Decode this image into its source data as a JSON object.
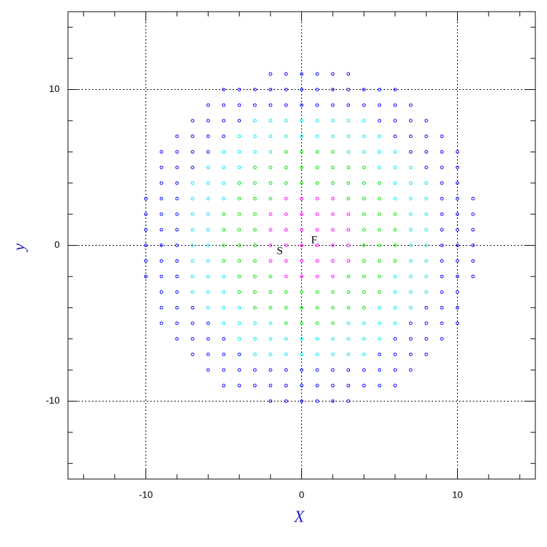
{
  "chart_data": {
    "type": "scatter",
    "xlabel": "X",
    "ylabel": "y",
    "xlim": [
      -15,
      15
    ],
    "ylim": [
      -15,
      15
    ],
    "xticks": [
      -10,
      0,
      10
    ],
    "yticks": [
      -10,
      0,
      10
    ],
    "xminorticks": [
      -14,
      -12,
      -8,
      -6,
      -4,
      -2,
      2,
      4,
      6,
      8,
      12,
      14
    ],
    "yminorticks": [
      -14,
      -12,
      -8,
      -6,
      -4,
      -2,
      2,
      4,
      6,
      8,
      12,
      14
    ],
    "grid": true,
    "series": [
      {
        "color": "#ff00ff",
        "x": [
          -1,
          0,
          1,
          2,
          -2,
          -1,
          0,
          1,
          2,
          3,
          -2,
          -1,
          0,
          1,
          2,
          3,
          -2,
          -1,
          0,
          1,
          2,
          3,
          -2,
          -1,
          0,
          1,
          2,
          3,
          -1,
          0,
          1,
          2
        ],
        "y": [
          3,
          3,
          3,
          3,
          2,
          2,
          2,
          2,
          2,
          2,
          1,
          1,
          1,
          1,
          1,
          1,
          0,
          0,
          0,
          0,
          0,
          0,
          -1,
          -1,
          -1,
          -1,
          -1,
          -1,
          -2,
          -2,
          -2,
          -2
        ]
      },
      {
        "color": "#00e000",
        "x": [
          -1,
          0,
          1,
          2,
          -3,
          -2,
          -1,
          0,
          1,
          2,
          3,
          4,
          -4,
          -3,
          -2,
          -1,
          0,
          1,
          2,
          3,
          4,
          5,
          -4,
          -3,
          -2,
          3,
          4,
          5,
          -5,
          -4,
          -3,
          4,
          5,
          6,
          -5,
          -4,
          -3,
          4,
          5,
          6,
          -5,
          -4,
          -3,
          4,
          5,
          6,
          -5,
          -4,
          -3,
          4,
          5,
          6,
          -4,
          -3,
          -2,
          3,
          4,
          5,
          -4,
          -3,
          -2,
          -1,
          0,
          1,
          2,
          3,
          4,
          5,
          -3,
          -2,
          -1,
          0,
          1,
          2,
          3,
          4,
          -1,
          0,
          1,
          2
        ],
        "y": [
          6,
          6,
          6,
          6,
          5,
          5,
          5,
          5,
          5,
          5,
          5,
          5,
          4,
          4,
          4,
          4,
          4,
          4,
          4,
          4,
          4,
          4,
          3,
          3,
          3,
          3,
          3,
          3,
          2,
          2,
          2,
          2,
          2,
          2,
          1,
          1,
          1,
          1,
          1,
          1,
          0,
          0,
          0,
          0,
          0,
          0,
          -1,
          -1,
          -1,
          -1,
          -1,
          -1,
          -2,
          -2,
          -2,
          -2,
          -2,
          -2,
          -3,
          -3,
          -3,
          -3,
          -3,
          -3,
          -3,
          -3,
          -3,
          -3,
          -4,
          -4,
          -4,
          -4,
          -4,
          -4,
          -4,
          -4,
          -5,
          -5,
          -5,
          -5
        ]
      },
      {
        "color": "#00e8e8",
        "x": [
          -3,
          -2,
          -1,
          0,
          1,
          2,
          3,
          4,
          -4,
          -3,
          -2,
          -1,
          0,
          1,
          2,
          3,
          4,
          5,
          -5,
          -4,
          -3,
          -2,
          3,
          4,
          5,
          6,
          -6,
          -5,
          -4,
          5,
          6,
          7,
          -7,
          -6,
          -5,
          6,
          7,
          8,
          -7,
          -6,
          -5,
          6,
          7,
          8,
          -7,
          -6,
          7,
          8,
          -7,
          -6,
          7,
          8,
          -7,
          -6,
          7,
          8,
          -7,
          -6,
          7,
          8,
          -7,
          -6,
          -5,
          6,
          7,
          8,
          -7,
          -6,
          -5,
          6,
          7,
          8,
          -6,
          -5,
          -4,
          5,
          6,
          7,
          -5,
          -4,
          -3,
          -2,
          3,
          4,
          5,
          6,
          -4,
          -3,
          -2,
          -1,
          0,
          1,
          2,
          3,
          4,
          5,
          -3,
          -2,
          -1,
          0,
          1,
          2,
          3,
          4
        ],
        "y": [
          8,
          8,
          8,
          8,
          8,
          8,
          8,
          8,
          7,
          7,
          7,
          7,
          7,
          7,
          7,
          7,
          7,
          7,
          6,
          6,
          6,
          6,
          6,
          6,
          6,
          6,
          5,
          5,
          5,
          5,
          5,
          5,
          4,
          4,
          4,
          4,
          4,
          4,
          3,
          3,
          3,
          3,
          3,
          3,
          2,
          2,
          2,
          2,
          1,
          1,
          1,
          1,
          0,
          0,
          0,
          0,
          -1,
          -1,
          -1,
          -1,
          -2,
          -2,
          -2,
          -2,
          -2,
          -2,
          -3,
          -3,
          -3,
          -3,
          -3,
          -3,
          -4,
          -4,
          -4,
          -4,
          -4,
          -4,
          -5,
          -5,
          -5,
          -5,
          -5,
          -5,
          -5,
          -5,
          -6,
          -6,
          -6,
          -6,
          -6,
          -6,
          -6,
          -6,
          -6,
          -6,
          -7,
          -7,
          -7,
          -7,
          -7,
          -7,
          -7,
          -7
        ]
      },
      {
        "color": "#0000ff",
        "x": [
          -2,
          -1,
          0,
          1,
          2,
          3,
          -5,
          -4,
          -3,
          -2,
          -1,
          0,
          1,
          2,
          3,
          4,
          5,
          6,
          -6,
          -5,
          -4,
          -3,
          -2,
          -1,
          0,
          1,
          2,
          3,
          4,
          5,
          6,
          7,
          -7,
          -6,
          -5,
          -4,
          5,
          6,
          7,
          8,
          -8,
          -7,
          -6,
          -5,
          6,
          7,
          8,
          9,
          -9,
          -8,
          -7,
          -6,
          7,
          8,
          9,
          10,
          -9,
          -8,
          -7,
          8,
          9,
          10,
          -9,
          -8,
          9,
          10,
          -10,
          -9,
          -8,
          9,
          10,
          11,
          -10,
          -9,
          -8,
          9,
          10,
          11,
          -10,
          -9,
          -8,
          9,
          10,
          11,
          -10,
          -9,
          -8,
          9,
          10,
          11,
          -10,
          -9,
          -8,
          9,
          10,
          11,
          -10,
          -9,
          -8,
          9,
          10,
          11,
          -9,
          -8,
          9,
          10,
          -9,
          -8,
          -7,
          8,
          9,
          10,
          -9,
          -8,
          -7,
          -6,
          7,
          8,
          9,
          10,
          -8,
          -7,
          -6,
          -5,
          6,
          7,
          8,
          9,
          -7,
          -6,
          -5,
          -4,
          5,
          6,
          7,
          8,
          -6,
          -5,
          -4,
          -3,
          -2,
          -1,
          0,
          1,
          2,
          3,
          4,
          5,
          6,
          7,
          -5,
          -4,
          -3,
          -2,
          -1,
          0,
          1,
          2,
          3,
          4,
          5,
          6,
          -2,
          -1,
          0,
          1,
          2,
          3
        ],
        "y": [
          11,
          11,
          11,
          11,
          11,
          11,
          10,
          10,
          10,
          10,
          10,
          10,
          10,
          10,
          10,
          10,
          10,
          10,
          9,
          9,
          9,
          9,
          9,
          9,
          9,
          9,
          9,
          9,
          9,
          9,
          9,
          9,
          8,
          8,
          8,
          8,
          8,
          8,
          8,
          8,
          7,
          7,
          7,
          7,
          7,
          7,
          7,
          7,
          6,
          6,
          6,
          6,
          6,
          6,
          6,
          6,
          5,
          5,
          5,
          5,
          5,
          5,
          4,
          4,
          4,
          4,
          3,
          3,
          3,
          3,
          3,
          3,
          2,
          2,
          2,
          2,
          2,
          2,
          1,
          1,
          1,
          1,
          1,
          1,
          0,
          0,
          0,
          0,
          0,
          0,
          -1,
          -1,
          -1,
          -1,
          -1,
          -1,
          -2,
          -2,
          -2,
          -2,
          -2,
          -2,
          -3,
          -3,
          -3,
          -3,
          -4,
          -4,
          -4,
          -4,
          -4,
          -4,
          -5,
          -5,
          -5,
          -5,
          -5,
          -5,
          -5,
          -5,
          -6,
          -6,
          -6,
          -6,
          -6,
          -6,
          -6,
          -6,
          -7,
          -7,
          -7,
          -7,
          -7,
          -7,
          -7,
          -7,
          -8,
          -8,
          -8,
          -8,
          -8,
          -8,
          -8,
          -8,
          -8,
          -8,
          -8,
          -8,
          -8,
          -8,
          -9,
          -9,
          -9,
          -9,
          -9,
          -9,
          -9,
          -9,
          -9,
          -9,
          -9,
          -9,
          -10,
          -10,
          -10,
          -10,
          -10,
          -10
        ]
      }
    ],
    "annotations": [
      {
        "text": "S",
        "x": -1.4,
        "y": -0.4,
        "color": "#ff0000"
      },
      {
        "text": "F",
        "x": 0.8,
        "y": 0.3,
        "color": "#ff0000"
      }
    ]
  }
}
